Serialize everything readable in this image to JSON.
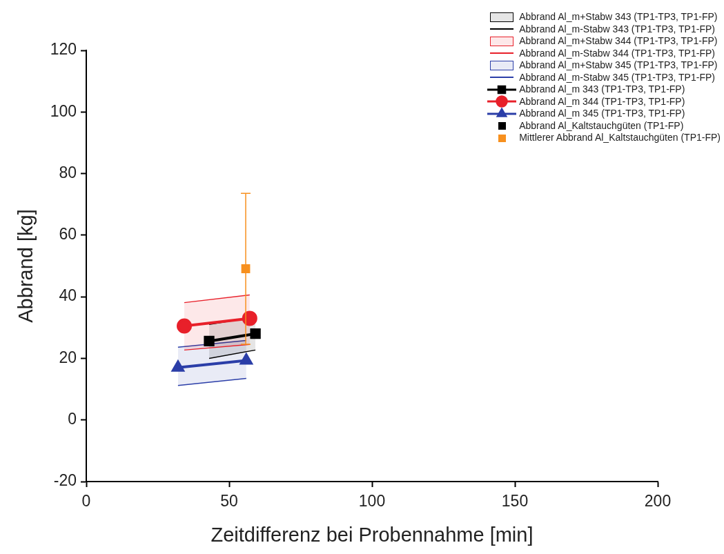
{
  "chart_data": {
    "type": "line",
    "xlabel": "Zeitdifferenz bei Probennahme [min]",
    "ylabel": "Abbrand [kg]",
    "xlim": [
      0,
      200
    ],
    "xticks": [
      0,
      50,
      100,
      150,
      200
    ],
    "ylim": [
      -20,
      120
    ],
    "yticks": [
      -20,
      0,
      20,
      40,
      60,
      80,
      100,
      120
    ],
    "grid": false,
    "legend": "top right",
    "series": [
      {
        "name": "Abbrand Al_m+Stabw 343 (TP1-TP3, TP1-FP)",
        "type": "area",
        "color": "#000000",
        "x": [
          43,
          59.2
        ],
        "values": [
          31,
          33.4
        ]
      },
      {
        "name": "Abbrand Al_m-Stabw 343 (TP1-TP3, TP1-FP)",
        "color": "#000000",
        "marker": "none",
        "x": [
          43,
          59.2
        ],
        "values": [
          20,
          22.7
        ]
      },
      {
        "name": "Abbrand Al_m+Stabw 344 (TP1-TP3, TP1-FP)",
        "type": "area",
        "color": "#e8202a",
        "x": [
          34.3,
          57.2
        ],
        "values": [
          38.1,
          40.6
        ]
      },
      {
        "name": "Abbrand Al_m-Stabw 344 (TP1-TP3, TP1-FP)",
        "color": "#e8202a",
        "marker": "none",
        "x": [
          34.3,
          57.2
        ],
        "values": [
          22.7,
          24.5
        ]
      },
      {
        "name": "Abbrand Al_m+Stabw 345 (TP1-TP3, TP1-FP)",
        "type": "area",
        "color": "#2b3ea8",
        "x": [
          32.1,
          56
        ],
        "values": [
          23.6,
          25.8
        ]
      },
      {
        "name": "Abbrand Al_m-Stabw 345 (TP1-TP3, TP1-FP)",
        "color": "#2b3ea8",
        "marker": "none",
        "x": [
          32.1,
          56
        ],
        "values": [
          11.2,
          13.5
        ]
      },
      {
        "name": "Abbrand Al_m 343 (TP1-TP3, TP1-FP)",
        "color": "#000000",
        "marker": "square",
        "x": [
          43,
          59.2
        ],
        "values": [
          25.6,
          28
        ]
      },
      {
        "name": "Abbrand Al_m 344 (TP1-TP3, TP1-FP)",
        "color": "#e8202a",
        "marker": "circle",
        "x": [
          34.3,
          57.2
        ],
        "values": [
          30.5,
          33
        ]
      },
      {
        "name": "Abbrand Al_m 345 (TP1-TP3, TP1-FP)",
        "color": "#2b3ea8",
        "marker": "triangle",
        "x": [
          32.1,
          56
        ],
        "values": [
          17,
          19.3
        ]
      },
      {
        "name": "Abbrand Al_Kaltstauchgüten (TP1-FP)",
        "type": "scatter",
        "color": "#000000",
        "marker": "square"
      },
      {
        "name": "Mittlerer Abbrand Al_Kaltstauchgüten (TP1-FP)",
        "type": "scatter",
        "color": "#f7901e",
        "marker": "square",
        "x": [
          55.8
        ],
        "values": [
          49.1
        ],
        "errors": [
          24.5
        ]
      }
    ]
  }
}
